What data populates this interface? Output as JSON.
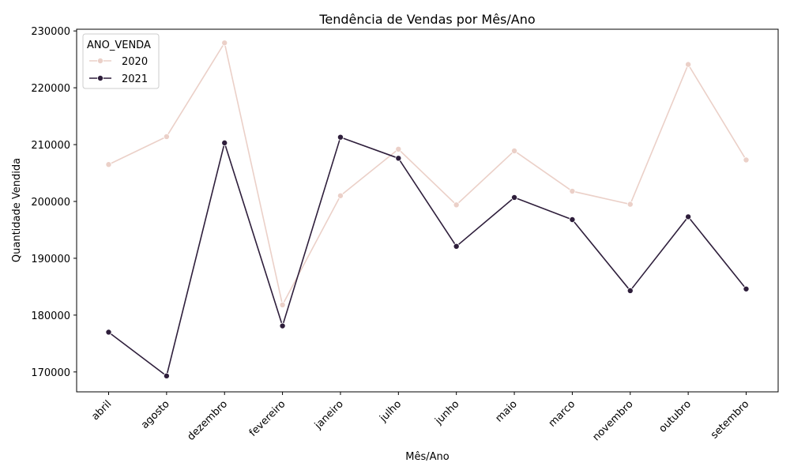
{
  "chart_data": {
    "type": "line",
    "title": "Tendência de Vendas por Mês/Ano",
    "xlabel": "Mês/Ano",
    "ylabel": "Quantidade Vendida",
    "categories": [
      "abril",
      "agosto",
      "dezembro",
      "fevereiro",
      "janeiro",
      "julho",
      "junho",
      "maio",
      "marco",
      "novembro",
      "outubro",
      "setembro"
    ],
    "ylim": [
      166500,
      230300
    ],
    "yticks": [
      170000,
      180000,
      190000,
      200000,
      210000,
      220000,
      230000
    ],
    "grid": false,
    "legend": {
      "title": "ANO_VENDA",
      "placement": "top-left"
    },
    "series": [
      {
        "name": "2020",
        "color": "#ebd0c8",
        "values": [
          206500,
          211400,
          227900,
          181800,
          201000,
          209200,
          199400,
          208900,
          201800,
          199500,
          224100,
          207300
        ]
      },
      {
        "name": "2021",
        "color": "#2e1e3b",
        "values": [
          177000,
          169300,
          210300,
          178100,
          211300,
          207600,
          192100,
          200700,
          196800,
          184300,
          197300,
          184600
        ]
      }
    ]
  }
}
